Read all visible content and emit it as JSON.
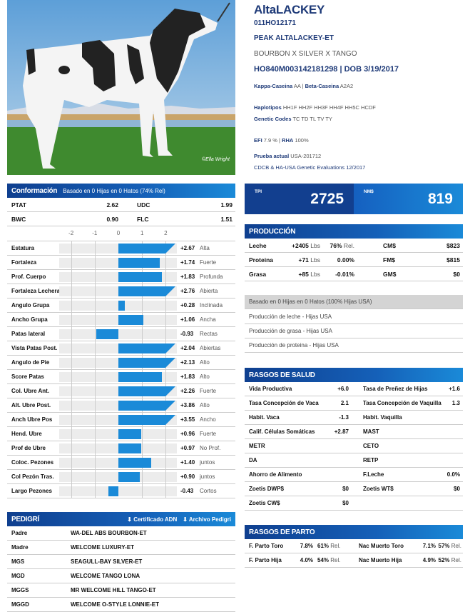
{
  "bull": {
    "name": "AltaLACKEY",
    "code": "011HO12171",
    "reg_name": "PEAK ALTALACKEY-ET",
    "pedigree_line": "BOURBON X SILVER X TANGO",
    "id_dob": "HO840M003142181298 | DOB 3/19/2017",
    "kappa_label": "Kappa-Caseina",
    "kappa": "AA",
    "beta_label": "Beta-Caseina",
    "beta": "A2A2",
    "haplo_label": "Haplotipos",
    "haplo": "HH1F HH2F HH3F HH4F HH5C HCDF",
    "gc_label": "Genetic Codes",
    "gc": "TC TD TL TV TY",
    "efi_label": "EFI",
    "efi": "7.9 %",
    "rha_label": "RHA",
    "rha": "100%",
    "prueba_label": "Prueba actual",
    "prueba": "USA-201712",
    "eval": "CDCB & HA-USA Genetic Evaluations 12/2017",
    "photo_credit": "©Ella Wright"
  },
  "colors": {
    "navy": "#0f3f8f",
    "blue": "#1a8ad8",
    "bar": "#1a8ad8"
  },
  "conf": {
    "title": "Conformación",
    "subtitle": "Basado en 0 Hijas en 0 Hatos (74% Rel)",
    "summary": [
      [
        "PTAT",
        "2.62",
        "UDC",
        "1.99"
      ],
      [
        "BWC",
        "0.90",
        "FLC",
        "1.51"
      ]
    ],
    "axis": [
      "-2",
      "-1",
      "0",
      "1",
      "2"
    ],
    "traits": [
      {
        "name": "Estatura",
        "value": 2.67,
        "label": "+2.67",
        "desc": "Alta"
      },
      {
        "name": "Fortaleza",
        "value": 1.74,
        "label": "+1.74",
        "desc": "Fuerte"
      },
      {
        "name": "Prof. Cuerpo",
        "value": 1.83,
        "label": "+1.83",
        "desc": "Profunda"
      },
      {
        "name": "Fortaleza Lechera",
        "value": 2.76,
        "label": "+2.76",
        "desc": "Abierta"
      },
      {
        "name": "Angulo Grupa",
        "value": 0.28,
        "label": "+0.28",
        "desc": "Inclinada"
      },
      {
        "name": "Ancho Grupa",
        "value": 1.06,
        "label": "+1.06",
        "desc": "Ancha"
      },
      {
        "name": "Patas lateral",
        "value": -0.93,
        "label": "-0.93",
        "desc": "Rectas"
      },
      {
        "name": "Vista Patas Post.",
        "value": 2.04,
        "label": "+2.04",
        "desc": "Abiertas"
      },
      {
        "name": "Angulo de Pie",
        "value": 2.13,
        "label": "+2.13",
        "desc": "Alto"
      },
      {
        "name": "Score Patas",
        "value": 1.83,
        "label": "+1.83",
        "desc": "Alto"
      },
      {
        "name": "Col. Ubre Ant.",
        "value": 2.26,
        "label": "+2.26",
        "desc": "Fuerte"
      },
      {
        "name": "Alt. Ubre Post.",
        "value": 3.86,
        "label": "+3.86",
        "desc": "Alto"
      },
      {
        "name": "Anch Ubre Pos",
        "value": 3.55,
        "label": "+3.55",
        "desc": "Ancho"
      },
      {
        "name": "Hend. Ubre",
        "value": 0.96,
        "label": "+0.96",
        "desc": "Fuerte"
      },
      {
        "name": "Prof de Ubre",
        "value": 0.97,
        "label": "+0.97",
        "desc": "No Prof."
      },
      {
        "name": "Coloc. Pezones",
        "value": 1.4,
        "label": "+1.40",
        "desc": "juntos"
      },
      {
        "name": "Col Pezón Tras.",
        "value": 0.9,
        "label": "+0.90",
        "desc": "juntos"
      },
      {
        "name": "Largo Pezones",
        "value": -0.43,
        "label": "-0.43",
        "desc": "Cortos"
      }
    ]
  },
  "pedigri": {
    "title": "PEDIGRÍ",
    "cert": "Certificado ADN",
    "archivo": "Archivo Pedigri",
    "rows": [
      [
        "Padre",
        "WA-DEL ABS BOURBON-ET"
      ],
      [
        "Madre",
        "WELCOME LUXURY-ET"
      ],
      [
        "MGS",
        "SEAGULL-BAY SILVER-ET"
      ],
      [
        "MGD",
        "WELCOME TANGO LONA"
      ],
      [
        "MGGS",
        "MR WELCOME HILL TANGO-ET"
      ],
      [
        "MGGD",
        "WELCOME O-STYLE LONNIE-ET"
      ]
    ]
  },
  "index": {
    "tpi_label": "TPI",
    "tpi": "2725",
    "nm_label": "NM$",
    "nm": "819"
  },
  "produccion": {
    "title": "PRODUCCIÓN",
    "rows": [
      [
        "Leche",
        "+2405",
        "Lbs",
        "76%",
        "Rel.",
        "CM$",
        "$823"
      ],
      [
        "Proteina",
        "+71",
        "Lbs",
        "0.00%",
        "",
        "FM$",
        "$815"
      ],
      [
        "Grasa",
        "+85",
        "Lbs",
        "-0.01%",
        "",
        "GM$",
        "$0"
      ]
    ],
    "basis": "Basado en 0 Hijas en 0 Hatos (100% Hijas USA)",
    "links": [
      "Producción de leche - Hijas USA",
      "Producción de grasa - Hijas USA",
      "Producción de proteina - Hijas USA"
    ]
  },
  "salud": {
    "title": "RASGOS DE SALUD",
    "rows": [
      [
        "Vida Productiva",
        "+6.0",
        "Tasa de Preñez de Hijas",
        "+1.6"
      ],
      [
        "Tasa Concepción de Vaca",
        "2.1",
        "Tasa Concepción de Vaquilla",
        "1.3"
      ],
      [
        "Habit. Vaca",
        "-1.3",
        "Habit. Vaquilla",
        ""
      ],
      [
        "Calif. Células Somáticas",
        "+2.87",
        "MAST",
        ""
      ],
      [
        "METR",
        "",
        "CETO",
        ""
      ],
      [
        "DA",
        "",
        "RETP",
        ""
      ],
      [
        "Ahorro de Alimento",
        "",
        "F.Leche",
        "0.0%"
      ],
      [
        "Zoetis DWP$",
        "$0",
        "Zoetis WT$",
        "$0"
      ],
      [
        "Zoetis CW$",
        "$0",
        "",
        ""
      ]
    ]
  },
  "parto": {
    "title": "RASGOS DE PARTO",
    "rows": [
      [
        "F. Parto Toro",
        "7.8%",
        "61%",
        "Rel.",
        "Nac Muerto Toro",
        "7.1%",
        "57%",
        "Rel."
      ],
      [
        "F. Parto Hija",
        "4.0%",
        "54%",
        "Rel.",
        "Nac Muerto Hija",
        "4.9%",
        "52%",
        "Rel."
      ]
    ]
  }
}
